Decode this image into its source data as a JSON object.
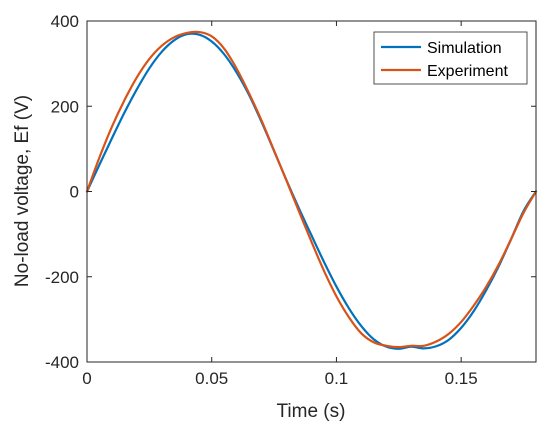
{
  "chart_data": {
    "type": "line",
    "title": "",
    "xlabel": "Time (s)",
    "ylabel": "No-load voltage, Ef (V)",
    "xlim": [
      0,
      0.18
    ],
    "ylim": [
      -400,
      400
    ],
    "x_ticks": [
      0,
      0.05,
      0.1,
      0.15
    ],
    "x_tick_labels": [
      "0",
      "0.05",
      "0.1",
      "0.15"
    ],
    "y_ticks": [
      -400,
      -200,
      0,
      200,
      400
    ],
    "y_tick_labels": [
      "-400",
      "-200",
      "0",
      "200",
      "400"
    ],
    "grid": false,
    "legend_position": "top-right",
    "series": [
      {
        "name": "Simulation",
        "color": "#0072BD",
        "x": [
          0,
          0.005,
          0.01,
          0.015,
          0.02,
          0.025,
          0.03,
          0.035,
          0.04,
          0.045,
          0.05,
          0.055,
          0.06,
          0.065,
          0.07,
          0.075,
          0.08,
          0.085,
          0.09,
          0.095,
          0.1,
          0.105,
          0.11,
          0.115,
          0.12,
          0.125,
          0.13,
          0.135,
          0.14,
          0.145,
          0.15,
          0.155,
          0.16,
          0.165,
          0.17,
          0.175,
          0.18
        ],
        "y": [
          0,
          63,
          125,
          185,
          240,
          289,
          328,
          355,
          369,
          368,
          352,
          322,
          279,
          226,
          163,
          95,
          26,
          -40,
          -103,
          -165,
          -223,
          -274,
          -316,
          -347,
          -364,
          -369,
          -364,
          -368,
          -363,
          -348,
          -320,
          -281,
          -232,
          -176,
          -112,
          -46,
          0
        ]
      },
      {
        "name": "Experiment",
        "color": "#D95319",
        "x": [
          0,
          0.005,
          0.01,
          0.015,
          0.02,
          0.025,
          0.03,
          0.035,
          0.04,
          0.045,
          0.05,
          0.055,
          0.06,
          0.065,
          0.07,
          0.075,
          0.08,
          0.085,
          0.09,
          0.095,
          0.1,
          0.105,
          0.11,
          0.115,
          0.12,
          0.125,
          0.13,
          0.135,
          0.14,
          0.145,
          0.15,
          0.155,
          0.16,
          0.165,
          0.17,
          0.175,
          0.18
        ],
        "y": [
          0,
          80,
          152,
          214,
          268,
          311,
          342,
          362,
          372,
          374,
          364,
          335,
          288,
          230,
          166,
          96,
          25,
          -47,
          -118,
          -186,
          -246,
          -295,
          -333,
          -354,
          -362,
          -365,
          -362,
          -362,
          -352,
          -334,
          -306,
          -268,
          -224,
          -172,
          -112,
          -50,
          0
        ]
      }
    ]
  }
}
